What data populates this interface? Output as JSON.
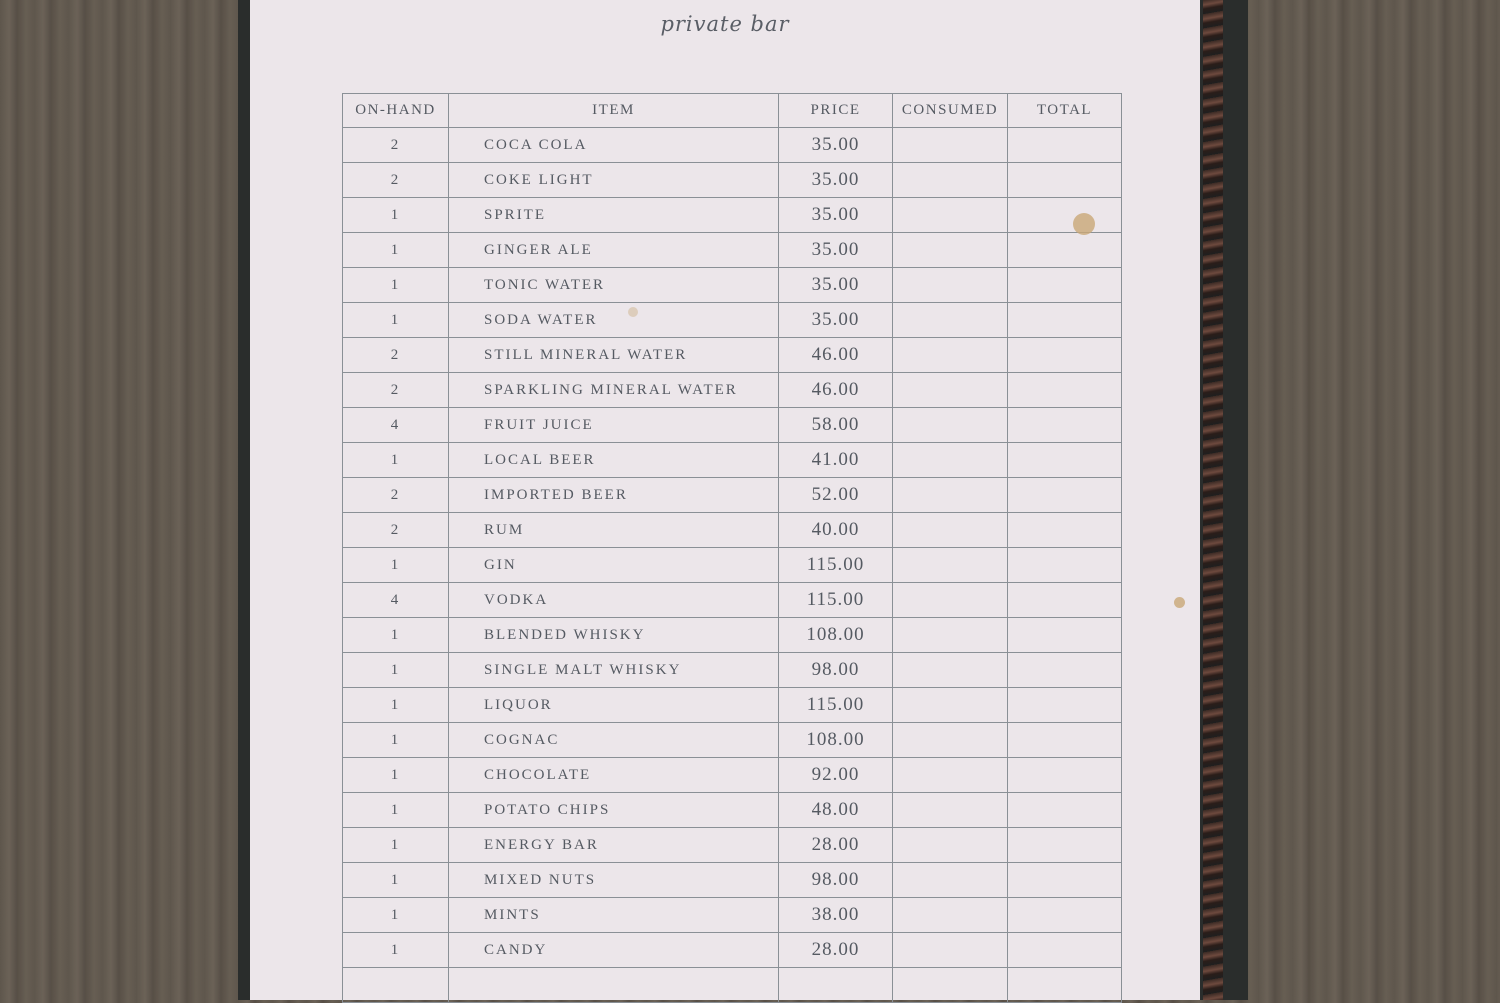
{
  "title": "private bar",
  "columns": [
    "ON-HAND",
    "ITEM",
    "PRICE",
    "CONSUMED",
    "TOTAL"
  ],
  "rows": [
    {
      "on_hand": "2",
      "item": "COCA COLA",
      "price": "35.00"
    },
    {
      "on_hand": "2",
      "item": "COKE LIGHT",
      "price": "35.00"
    },
    {
      "on_hand": "1",
      "item": "SPRITE",
      "price": "35.00"
    },
    {
      "on_hand": "1",
      "item": "GINGER ALE",
      "price": "35.00"
    },
    {
      "on_hand": "1",
      "item": "TONIC WATER",
      "price": "35.00"
    },
    {
      "on_hand": "1",
      "item": "SODA WATER",
      "price": "35.00"
    },
    {
      "on_hand": "2",
      "item": "STILL MINERAL WATER",
      "price": "46.00"
    },
    {
      "on_hand": "2",
      "item": "SPARKLING MINERAL WATER",
      "price": "46.00"
    },
    {
      "on_hand": "4",
      "item": "FRUIT JUICE",
      "price": "58.00"
    },
    {
      "on_hand": "1",
      "item": "LOCAL BEER",
      "price": "41.00"
    },
    {
      "on_hand": "2",
      "item": "IMPORTED BEER",
      "price": "52.00"
    },
    {
      "on_hand": "2",
      "item": "RUM",
      "price": "40.00"
    },
    {
      "on_hand": "1",
      "item": "GIN",
      "price": "115.00"
    },
    {
      "on_hand": "4",
      "item": "VODKA",
      "price": "115.00"
    },
    {
      "on_hand": "1",
      "item": "BLENDED WHISKY",
      "price": "108.00"
    },
    {
      "on_hand": "1",
      "item": "SINGLE MALT WHISKY",
      "price": "98.00"
    },
    {
      "on_hand": "1",
      "item": "LIQUOR",
      "price": "115.00"
    },
    {
      "on_hand": "1",
      "item": "COGNAC",
      "price": "108.00"
    },
    {
      "on_hand": "1",
      "item": "CHOCOLATE",
      "price": "92.00"
    },
    {
      "on_hand": "1",
      "item": "POTATO CHIPS",
      "price": "48.00"
    },
    {
      "on_hand": "1",
      "item": "ENERGY BAR",
      "price": "28.00"
    },
    {
      "on_hand": "1",
      "item": "MIXED NUTS",
      "price": "98.00"
    },
    {
      "on_hand": "1",
      "item": "MINTS",
      "price": "38.00"
    },
    {
      "on_hand": "1",
      "item": "CANDY",
      "price": "28.00"
    }
  ]
}
